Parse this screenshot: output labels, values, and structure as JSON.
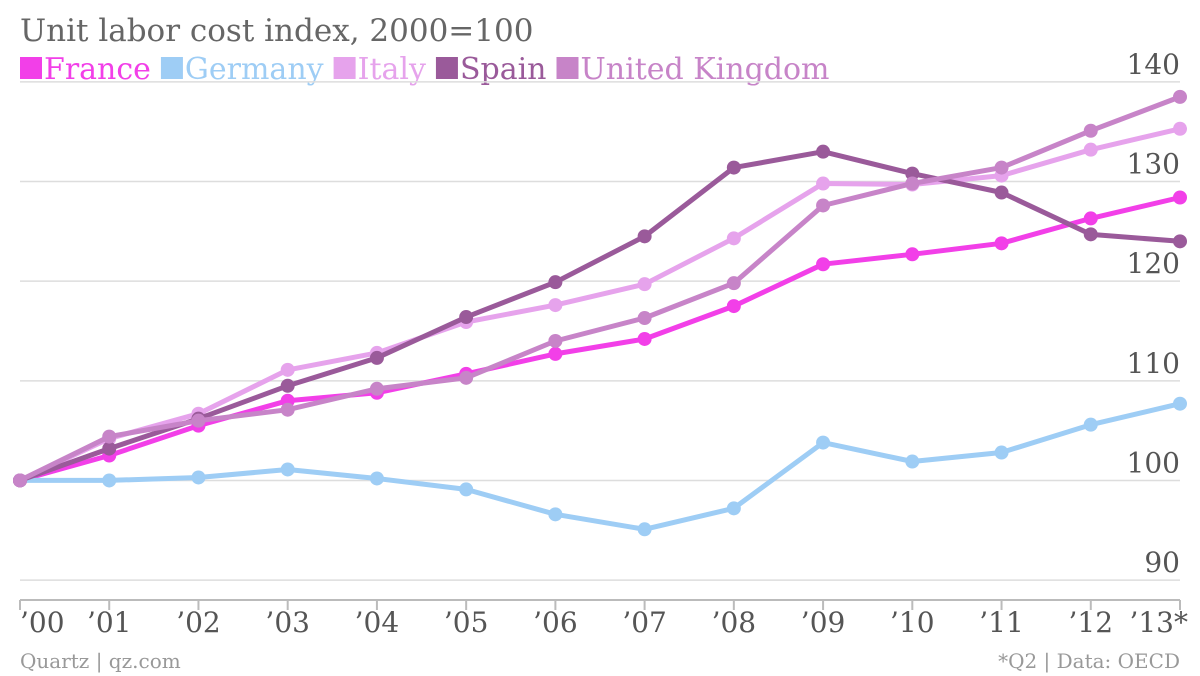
{
  "chart_data": {
    "type": "line",
    "title": "Unit labor cost index, 2000=100",
    "source_left": "Quartz | qz.com",
    "source_right": "*Q2 | Data: OECD",
    "categories": [
      "’00",
      "’01",
      "’02",
      "’03",
      "’04",
      "’05",
      "’06",
      "’07",
      "’08",
      "’09",
      "’10",
      "’11",
      "’12",
      "’13*"
    ],
    "ylim": [
      88,
      142
    ],
    "yticks": [
      90,
      100,
      110,
      120,
      130,
      140
    ],
    "grid": true,
    "legend_position": "top-left",
    "series": [
      {
        "name": "France",
        "color": "#F23FE8",
        "values": [
          100,
          102.5,
          105.5,
          108,
          108.8,
          110.7,
          112.7,
          114.2,
          117.5,
          121.7,
          122.7,
          123.8,
          126.3,
          128.4
        ]
      },
      {
        "name": "Germany",
        "color": "#9ECDF5",
        "values": [
          100,
          100,
          100.3,
          101.1,
          100.2,
          99.1,
          96.6,
          95.1,
          97.2,
          103.8,
          101.9,
          102.8,
          105.6,
          107.7
        ]
      },
      {
        "name": "Italy",
        "color": "#E6A3EC",
        "values": [
          100,
          104.2,
          106.7,
          111.1,
          112.8,
          115.9,
          117.6,
          119.7,
          124.3,
          129.8,
          129.7,
          130.6,
          133.2,
          135.3
        ]
      },
      {
        "name": "Spain",
        "color": "#9A5A9A",
        "values": [
          100,
          103.2,
          106.2,
          109.5,
          112.3,
          116.4,
          119.9,
          124.5,
          131.4,
          133,
          130.8,
          128.9,
          124.7,
          124
        ]
      },
      {
        "name": "United Kingdom",
        "color": "#C784C8",
        "values": [
          100,
          104.4,
          106,
          107.1,
          109.2,
          110.3,
          114,
          116.3,
          119.8,
          127.6,
          129.8,
          131.4,
          135.1,
          138.5
        ]
      }
    ]
  }
}
